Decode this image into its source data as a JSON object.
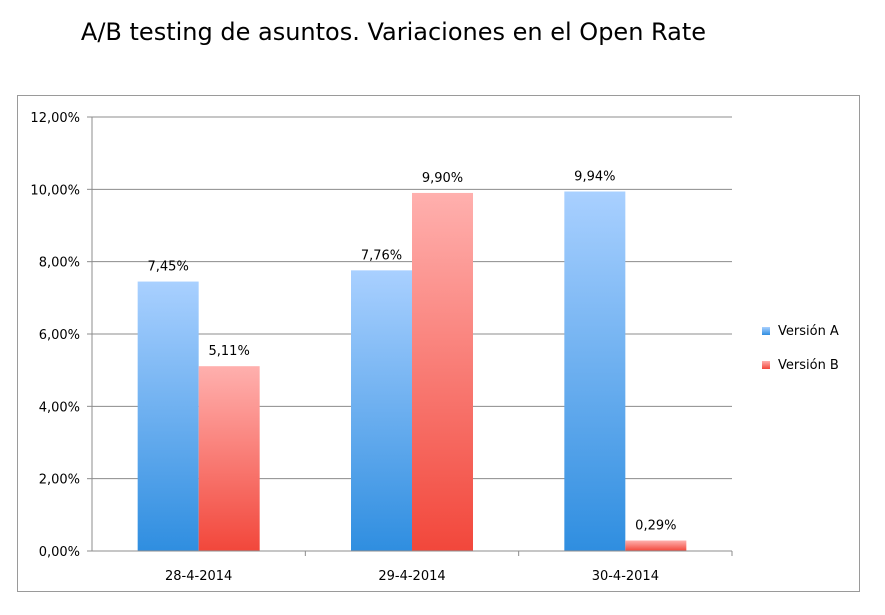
{
  "chart_data": {
    "type": "bar",
    "title": "A/B testing de asuntos. Variaciones en el Open Rate",
    "categories": [
      "28-4-2014",
      "29-4-2014",
      "30-4-2014"
    ],
    "series": [
      {
        "name": "Versión A",
        "values": [
          7.45,
          7.76,
          9.94
        ],
        "labels": [
          "7,45%",
          "7,76%",
          "9,94%"
        ],
        "color_top": "#a9d0ff",
        "color_bottom": "#2f8ee0"
      },
      {
        "name": "Versión B",
        "values": [
          5.11,
          9.9,
          0.29
        ],
        "labels": [
          "5,11%",
          "9,90%",
          "0,29%"
        ],
        "color_top": "#ffb0ae",
        "color_bottom": "#f2473b"
      }
    ],
    "y_ticks": [
      "0,00%",
      "2,00%",
      "4,00%",
      "6,00%",
      "8,00%",
      "10,00%",
      "12,00%"
    ],
    "ylim": [
      0,
      12
    ],
    "grid": true,
    "legend_position": "right"
  }
}
